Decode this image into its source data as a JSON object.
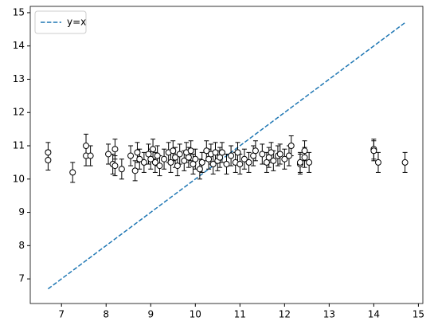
{
  "chart_data": {
    "type": "scatter",
    "xlim": [
      6.3,
      15.1
    ],
    "ylim": [
      6.26,
      15.19
    ],
    "xticks": [
      7,
      8,
      9,
      10,
      11,
      12,
      13,
      14,
      15
    ],
    "yticks": [
      7,
      8,
      9,
      10,
      11,
      12,
      13,
      14,
      15
    ],
    "legend": "upper left",
    "series": [
      {
        "name": "y=x",
        "type": "line",
        "color": "#1f77b4",
        "dashed": true,
        "x": [
          6.7,
          14.7
        ],
        "values": [
          6.7,
          14.7
        ]
      },
      {
        "type": "errorbar",
        "color": "#000000",
        "x": [
          6.7,
          6.7,
          7.25,
          7.55,
          7.55,
          7.65,
          8.05,
          8.15,
          8.2,
          8.2,
          8.35,
          8.55,
          8.65,
          8.7,
          8.75,
          8.85,
          8.95,
          9.0,
          9.05,
          9.1,
          9.15,
          9.2,
          9.3,
          9.4,
          9.45,
          9.5,
          9.55,
          9.6,
          9.65,
          9.75,
          9.8,
          9.85,
          9.9,
          9.95,
          10.0,
          10.1,
          10.15,
          10.25,
          10.3,
          10.35,
          10.4,
          10.45,
          10.5,
          10.55,
          10.6,
          10.7,
          10.8,
          10.9,
          10.95,
          11.0,
          11.1,
          11.2,
          11.3,
          11.35,
          11.5,
          11.6,
          11.65,
          11.7,
          11.75,
          11.85,
          11.9,
          12.0,
          12.1,
          12.15,
          12.35,
          12.35,
          12.45,
          12.45,
          12.55,
          14.0,
          14.0,
          14.1,
          14.7
        ],
        "values": [
          10.8,
          10.57,
          10.2,
          11.0,
          10.7,
          10.7,
          10.75,
          10.45,
          10.9,
          10.4,
          10.3,
          10.7,
          10.25,
          10.8,
          10.6,
          10.5,
          10.75,
          10.6,
          10.9,
          10.5,
          10.7,
          10.4,
          10.6,
          10.8,
          10.5,
          10.85,
          10.65,
          10.4,
          10.75,
          10.55,
          10.8,
          10.65,
          10.85,
          10.45,
          10.6,
          10.3,
          10.5,
          10.85,
          10.6,
          10.75,
          10.45,
          10.8,
          10.55,
          10.65,
          10.8,
          10.45,
          10.7,
          10.5,
          10.8,
          10.45,
          10.6,
          10.5,
          10.7,
          10.85,
          10.75,
          10.5,
          10.65,
          10.8,
          10.55,
          10.7,
          10.75,
          10.6,
          10.7,
          11.0,
          10.45,
          10.5,
          10.85,
          10.65,
          10.5,
          10.9,
          10.85,
          10.5,
          10.5
        ],
        "yerr": [
          0.3,
          0.3,
          0.3,
          0.35,
          0.3,
          0.3,
          0.3,
          0.3,
          0.3,
          0.3,
          0.3,
          0.3,
          0.3,
          0.3,
          0.3,
          0.3,
          0.3,
          0.3,
          0.3,
          0.3,
          0.3,
          0.3,
          0.3,
          0.3,
          0.3,
          0.3,
          0.3,
          0.3,
          0.3,
          0.3,
          0.3,
          0.3,
          0.3,
          0.3,
          0.3,
          0.3,
          0.3,
          0.3,
          0.3,
          0.3,
          0.3,
          0.3,
          0.3,
          0.3,
          0.3,
          0.3,
          0.3,
          0.3,
          0.3,
          0.3,
          0.3,
          0.3,
          0.3,
          0.3,
          0.3,
          0.3,
          0.3,
          0.3,
          0.3,
          0.3,
          0.3,
          0.3,
          0.3,
          0.3,
          0.3,
          0.3,
          0.3,
          0.3,
          0.3,
          0.3,
          0.3,
          0.3,
          0.3
        ]
      }
    ]
  }
}
